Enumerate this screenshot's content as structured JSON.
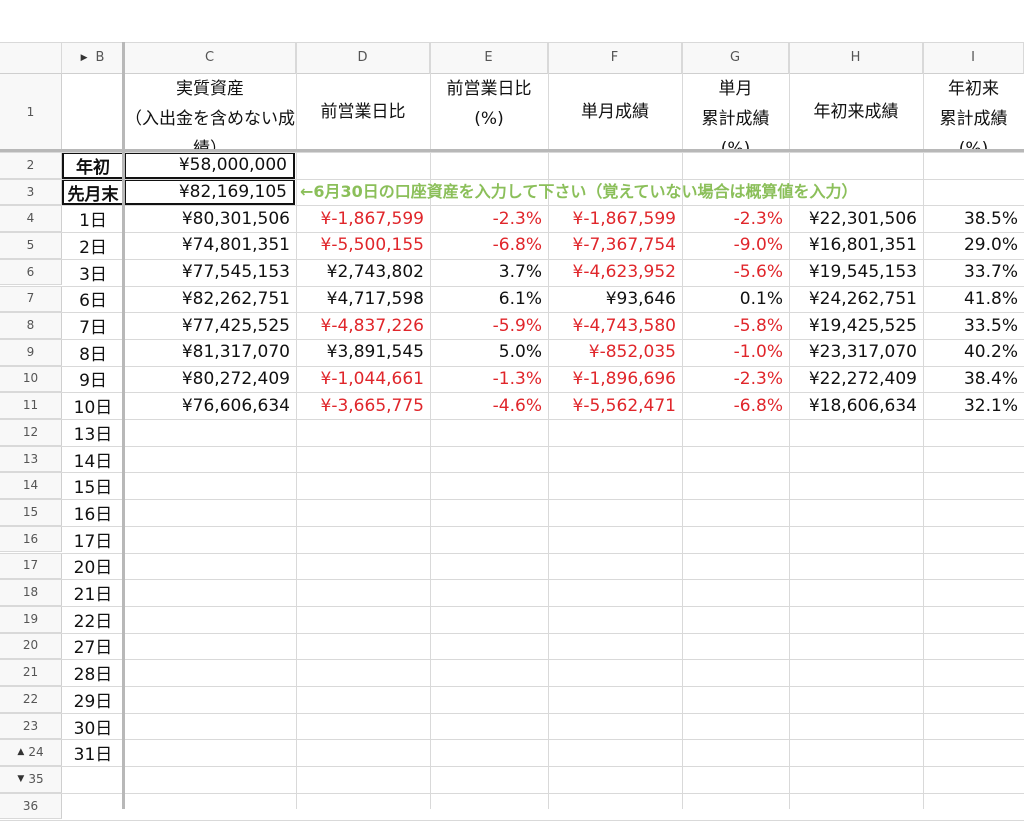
{
  "columns": [
    {
      "letter": "B",
      "collapse_glyph": "▶"
    },
    {
      "letter": "C"
    },
    {
      "letter": "D"
    },
    {
      "letter": "E"
    },
    {
      "letter": "F"
    },
    {
      "letter": "G"
    },
    {
      "letter": "H"
    },
    {
      "letter": "I"
    }
  ],
  "header_row": {
    "row_number": "1",
    "C": [
      "実質資産",
      "（入出金を含めない成",
      "績）"
    ],
    "D": [
      "前営業日比"
    ],
    "E": [
      "前営業日比",
      "(%)"
    ],
    "F": [
      "単月成績"
    ],
    "G": [
      "単月",
      "累計成績",
      "(%)"
    ],
    "H": [
      "年初来成績"
    ],
    "I": [
      "年初来",
      "累計成績",
      "(%)"
    ]
  },
  "rows": [
    {
      "num": "2",
      "B": "年初",
      "C": "¥58,000,000"
    },
    {
      "num": "3",
      "B": "先月末",
      "C": "¥82,169,105"
    },
    {
      "num": "4",
      "B": "1日",
      "C": "¥80,301,506",
      "D": "¥-1,867,599",
      "E": "-2.3%",
      "F": "¥-1,867,599",
      "G": "-2.3%",
      "H": "¥22,301,506",
      "I": "38.5%"
    },
    {
      "num": "5",
      "B": "2日",
      "C": "¥74,801,351",
      "D": "¥-5,500,155",
      "E": "-6.8%",
      "F": "¥-7,367,754",
      "G": "-9.0%",
      "H": "¥16,801,351",
      "I": "29.0%"
    },
    {
      "num": "6",
      "B": "3日",
      "C": "¥77,545,153",
      "D": "¥2,743,802",
      "E": "3.7%",
      "F": "¥-4,623,952",
      "G": "-5.6%",
      "H": "¥19,545,153",
      "I": "33.7%"
    },
    {
      "num": "7",
      "B": "6日",
      "C": "¥82,262,751",
      "D": "¥4,717,598",
      "E": "6.1%",
      "F": "¥93,646",
      "G": "0.1%",
      "H": "¥24,262,751",
      "I": "41.8%"
    },
    {
      "num": "8",
      "B": "7日",
      "C": "¥77,425,525",
      "D": "¥-4,837,226",
      "E": "-5.9%",
      "F": "¥-4,743,580",
      "G": "-5.8%",
      "H": "¥19,425,525",
      "I": "33.5%"
    },
    {
      "num": "9",
      "B": "8日",
      "C": "¥81,317,070",
      "D": "¥3,891,545",
      "E": "5.0%",
      "F": "¥-852,035",
      "G": "-1.0%",
      "H": "¥23,317,070",
      "I": "40.2%"
    },
    {
      "num": "10",
      "B": "9日",
      "C": "¥80,272,409",
      "D": "¥-1,044,661",
      "E": "-1.3%",
      "F": "¥-1,896,696",
      "G": "-2.3%",
      "H": "¥22,272,409",
      "I": "38.4%"
    },
    {
      "num": "11",
      "B": "10日",
      "C": "¥76,606,634",
      "D": "¥-3,665,775",
      "E": "-4.6%",
      "F": "¥-5,562,471",
      "G": "-6.8%",
      "H": "¥18,606,634",
      "I": "32.1%"
    },
    {
      "num": "12",
      "B": "13日"
    },
    {
      "num": "13",
      "B": "14日"
    },
    {
      "num": "14",
      "B": "15日"
    },
    {
      "num": "15",
      "B": "16日"
    },
    {
      "num": "16",
      "B": "17日"
    },
    {
      "num": "17",
      "B": "20日"
    },
    {
      "num": "18",
      "B": "21日"
    },
    {
      "num": "19",
      "B": "22日"
    },
    {
      "num": "20",
      "B": "27日"
    },
    {
      "num": "21",
      "B": "28日"
    },
    {
      "num": "22",
      "B": "29日"
    },
    {
      "num": "23",
      "B": "30日"
    },
    {
      "num": "24",
      "B": "31日",
      "glyph": "▲"
    },
    {
      "num": "35",
      "glyph": "▼"
    },
    {
      "num": "36"
    }
  ],
  "note": "←6月30日の口座資産を入力して下さい（覚えていない場合は概算値を入力）",
  "colors": {
    "negative": "#e0262b",
    "note": "#8bbf5a",
    "header_bg": "#f8f8f8",
    "grid": "#d9d9d9"
  }
}
